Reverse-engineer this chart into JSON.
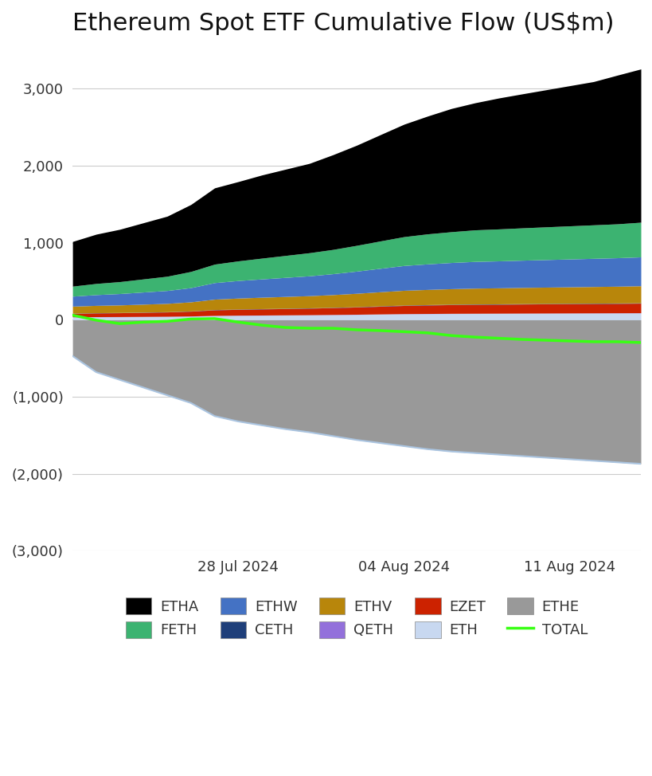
{
  "title": "Ethereum Spot ETF Cumulative Flow (US$m)",
  "n_points": 25,
  "ylim": [
    -3000,
    3500
  ],
  "yticks": [
    -3000,
    -2000,
    -1000,
    0,
    1000,
    2000,
    3000
  ],
  "ytick_labels": [
    "(3,000)",
    "(2,000)",
    "(1,000)",
    "0",
    "1,000",
    "2,000",
    "3,000"
  ],
  "xtick_positions": [
    7,
    14,
    21
  ],
  "xtick_labels": [
    "28 Jul 2024",
    "04 Aug 2024",
    "11 Aug 2024"
  ],
  "background_color": "#ffffff",
  "title_fontsize": 22,
  "tick_fontsize": 13,
  "legend_fontsize": 13,
  "series_order": [
    "ETH",
    "QETH",
    "EZET",
    "CETH",
    "ETHV",
    "ETHW",
    "FETH",
    "ETHA"
  ],
  "ETHA_color": "#000000",
  "FETH_color": "#3cb371",
  "ETHW_color": "#4472c4",
  "CETH_color": "#1f3f7a",
  "ETHV_color": "#b8860b",
  "QETH_color": "#9370db",
  "EZET_color": "#cc2200",
  "ETH_color": "#c8d8f0",
  "ETHE_color": "#999999",
  "TOTAL_color": "#39ff14",
  "ethe_outline_color": "#aac4e0",
  "ETHA": [
    580,
    640,
    680,
    730,
    780,
    870,
    990,
    1030,
    1080,
    1120,
    1160,
    1230,
    1300,
    1380,
    1460,
    1530,
    1600,
    1650,
    1700,
    1740,
    1780,
    1820,
    1860,
    1930,
    1990
  ],
  "FETH": [
    130,
    145,
    155,
    170,
    185,
    210,
    240,
    255,
    270,
    285,
    300,
    315,
    335,
    355,
    375,
    390,
    400,
    410,
    415,
    420,
    425,
    430,
    435,
    440,
    450
  ],
  "ETHW": [
    130,
    140,
    148,
    158,
    168,
    185,
    215,
    228,
    238,
    248,
    258,
    272,
    288,
    305,
    322,
    332,
    340,
    347,
    350,
    354,
    358,
    362,
    366,
    370,
    375
  ],
  "CETH": [
    3,
    3,
    3,
    3,
    3,
    3,
    4,
    4,
    4,
    4,
    4,
    4,
    4,
    5,
    5,
    5,
    5,
    5,
    5,
    5,
    5,
    5,
    5,
    5,
    5
  ],
  "ETHV": [
    90,
    95,
    98,
    103,
    108,
    118,
    135,
    142,
    148,
    153,
    158,
    165,
    174,
    183,
    192,
    197,
    202,
    206,
    208,
    210,
    212,
    214,
    216,
    218,
    221
  ],
  "QETH": [
    3,
    3,
    3,
    3,
    3,
    3,
    3,
    3,
    3,
    3,
    3,
    3,
    3,
    3,
    3,
    3,
    3,
    3,
    3,
    3,
    3,
    3,
    3,
    3,
    3
  ],
  "EZET": [
    45,
    48,
    50,
    53,
    56,
    62,
    72,
    76,
    79,
    82,
    85,
    89,
    94,
    100,
    106,
    110,
    113,
    115,
    116,
    118,
    119,
    120,
    121,
    122,
    124
  ],
  "ETH": [
    35,
    37,
    38,
    40,
    42,
    46,
    53,
    56,
    58,
    60,
    62,
    65,
    68,
    72,
    76,
    78,
    80,
    81,
    82,
    83,
    84,
    85,
    86,
    87,
    88
  ],
  "ETHE": [
    -470,
    -680,
    -780,
    -880,
    -980,
    -1080,
    -1250,
    -1320,
    -1370,
    -1420,
    -1460,
    -1510,
    -1560,
    -1600,
    -1640,
    -1680,
    -1710,
    -1730,
    -1750,
    -1770,
    -1790,
    -1810,
    -1830,
    -1850,
    -1870
  ],
  "TOTAL": [
    60,
    -5,
    -50,
    -30,
    -20,
    10,
    15,
    -30,
    -70,
    -100,
    -110,
    -110,
    -130,
    -140,
    -155,
    -170,
    -205,
    -225,
    -240,
    -255,
    -265,
    -275,
    -285,
    -285,
    -295
  ]
}
